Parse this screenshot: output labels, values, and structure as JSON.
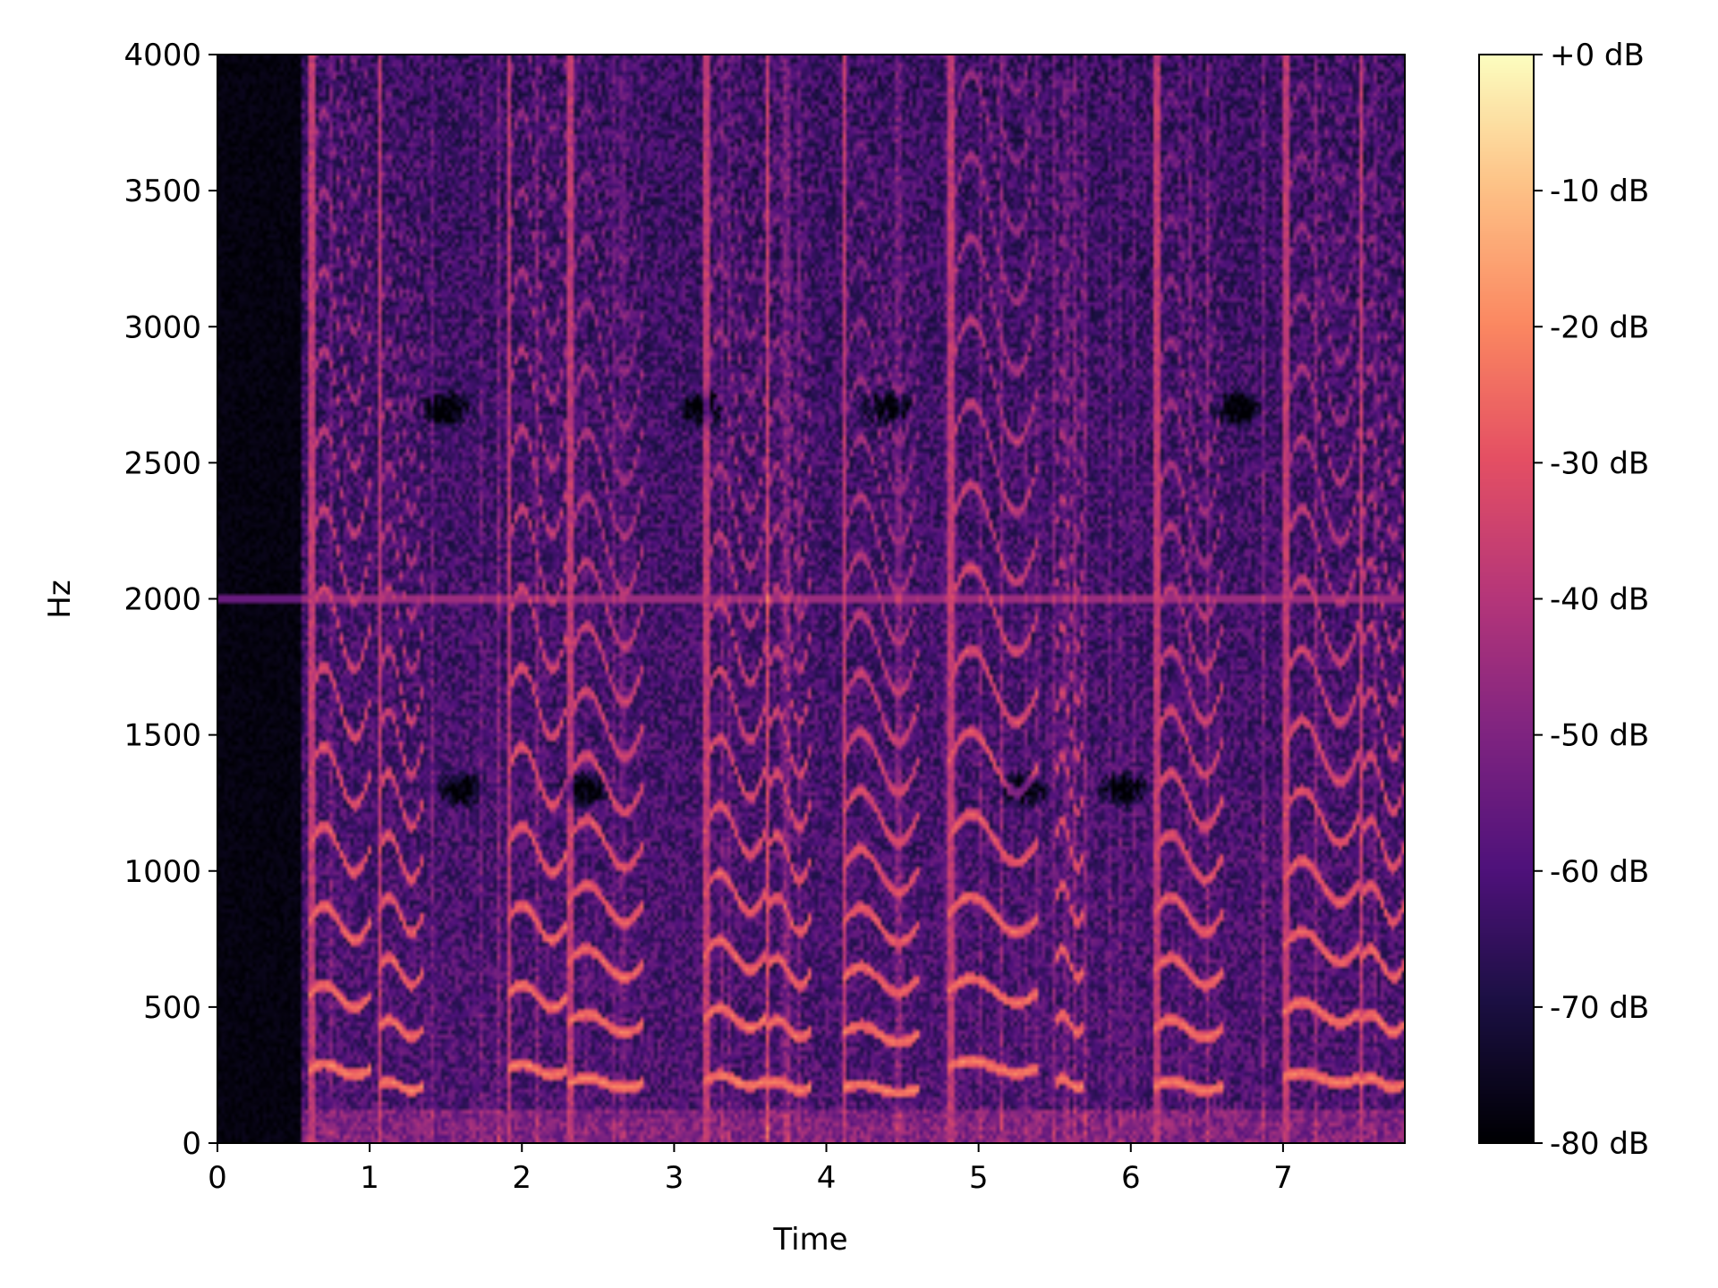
{
  "chart_data": {
    "type": "heatmap",
    "title": "",
    "xlabel": "Time",
    "ylabel": "Hz",
    "xlim": [
      0,
      7.8
    ],
    "ylim": [
      0,
      4000
    ],
    "x_ticks": [
      {
        "value": 0,
        "label": "0"
      },
      {
        "value": 1,
        "label": "1"
      },
      {
        "value": 2,
        "label": "2"
      },
      {
        "value": 3,
        "label": "3"
      },
      {
        "value": 4,
        "label": "4"
      },
      {
        "value": 5,
        "label": "5"
      },
      {
        "value": 6,
        "label": "6"
      },
      {
        "value": 7,
        "label": "7"
      }
    ],
    "y_ticks": [
      {
        "value": 0,
        "label": "0"
      },
      {
        "value": 500,
        "label": "500"
      },
      {
        "value": 1000,
        "label": "1000"
      },
      {
        "value": 1500,
        "label": "1500"
      },
      {
        "value": 2000,
        "label": "2000"
      },
      {
        "value": 2500,
        "label": "2500"
      },
      {
        "value": 3000,
        "label": "3000"
      },
      {
        "value": 3500,
        "label": "3500"
      },
      {
        "value": 4000,
        "label": "4000"
      }
    ],
    "colorbar": {
      "colormap": "magma",
      "range": [
        -80,
        0
      ],
      "unit": "dB",
      "ticks": [
        {
          "value": 0,
          "label": "+0 dB"
        },
        {
          "value": -10,
          "label": "-10 dB"
        },
        {
          "value": -20,
          "label": "-20 dB"
        },
        {
          "value": -30,
          "label": "-30 dB"
        },
        {
          "value": -40,
          "label": "-40 dB"
        },
        {
          "value": -50,
          "label": "-50 dB"
        },
        {
          "value": -60,
          "label": "-60 dB"
        },
        {
          "value": -70,
          "label": "-70 dB"
        },
        {
          "value": -80,
          "label": "-80 dB"
        }
      ]
    },
    "features": {
      "silence": {
        "t_start": 0,
        "t_end": 0.55,
        "level_db": -80
      },
      "background_db": -60,
      "tone_hz": 2000,
      "tone_db": -45,
      "harmonic_segments": [
        {
          "t_start": 0.6,
          "t_end": 1.0,
          "f0": 270
        },
        {
          "t_start": 1.05,
          "t_end": 1.35,
          "f0": 210
        },
        {
          "t_start": 1.9,
          "t_end": 2.3,
          "f0": 270
        },
        {
          "t_start": 2.3,
          "t_end": 2.8,
          "f0": 220
        },
        {
          "t_start": 3.2,
          "t_end": 3.6,
          "f0": 230
        },
        {
          "t_start": 3.6,
          "t_end": 3.9,
          "f0": 210
        },
        {
          "t_start": 4.1,
          "t_end": 4.6,
          "f0": 200
        },
        {
          "t_start": 4.8,
          "t_end": 5.4,
          "f0": 280
        },
        {
          "t_start": 5.5,
          "t_end": 5.7,
          "f0": 220
        },
        {
          "t_start": 6.15,
          "t_end": 6.6,
          "f0": 210
        },
        {
          "t_start": 7.0,
          "t_end": 7.5,
          "f0": 240
        },
        {
          "t_start": 7.5,
          "t_end": 7.8,
          "f0": 220
        }
      ],
      "dark_blobs": [
        {
          "t": 1.5,
          "f": 2700
        },
        {
          "t": 2.4,
          "f": 1300
        },
        {
          "t": 3.2,
          "f": 2700
        },
        {
          "t": 4.4,
          "f": 2700
        },
        {
          "t": 5.3,
          "f": 1300
        },
        {
          "t": 5.95,
          "f": 1300
        },
        {
          "t": 6.7,
          "f": 2700
        },
        {
          "t": 1.6,
          "f": 1300
        }
      ]
    }
  }
}
